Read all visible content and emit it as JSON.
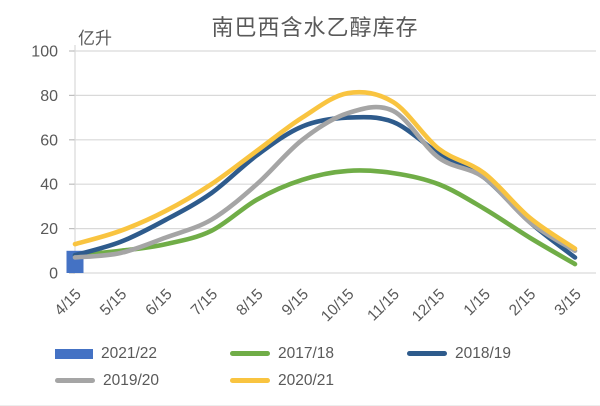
{
  "chart_data": {
    "type": "line",
    "title": "南巴西含水乙醇库存",
    "unit_label": "亿升",
    "categories": [
      "4/15",
      "5/15",
      "6/15",
      "7/15",
      "8/15",
      "9/15",
      "10/15",
      "11/15",
      "12/15",
      "1/15",
      "2/15",
      "3/15"
    ],
    "ylim": [
      0,
      100
    ],
    "yticks": [
      0,
      20,
      40,
      60,
      80,
      100
    ],
    "grid": true,
    "legend_position": "bottom",
    "colors": {
      "background": "#ffffff",
      "gridline": "#d9d9d9",
      "axis_text": "#595959",
      "tick_mark": "#bfbfbf"
    },
    "series": [
      {
        "name": "2021/22",
        "type": "bar",
        "color": "#4472C4",
        "values": [
          10,
          null,
          null,
          null,
          null,
          null,
          null,
          null,
          null,
          null,
          null,
          null
        ]
      },
      {
        "name": "2017/18",
        "type": "line",
        "color": "#70AD47",
        "values": [
          8,
          10,
          13,
          19,
          33,
          42,
          46,
          45,
          40,
          29,
          16,
          4
        ]
      },
      {
        "name": "2018/19",
        "type": "line",
        "color": "#2E5B8C",
        "values": [
          8,
          14,
          24,
          36,
          53,
          66,
          70,
          68,
          54,
          43,
          23,
          7
        ]
      },
      {
        "name": "2019/20",
        "type": "line",
        "color": "#A5A5A5",
        "values": [
          7,
          9,
          16,
          24,
          40,
          60,
          72,
          73,
          52,
          43,
          23,
          10
        ]
      },
      {
        "name": "2020/21",
        "type": "line",
        "color": "#F9C440",
        "values": [
          13,
          19,
          28,
          40,
          55,
          70,
          81,
          77,
          56,
          45,
          25,
          11
        ]
      }
    ]
  }
}
